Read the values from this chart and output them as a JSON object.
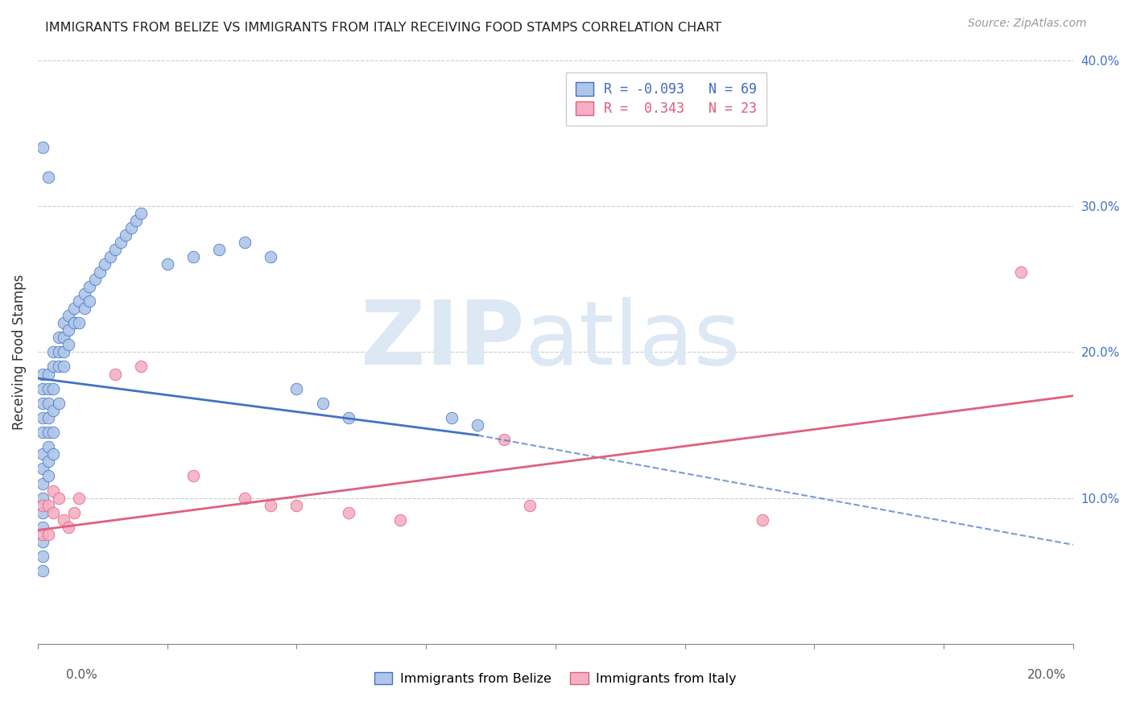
{
  "title": "IMMIGRANTS FROM BELIZE VS IMMIGRANTS FROM ITALY RECEIVING FOOD STAMPS CORRELATION CHART",
  "source": "Source: ZipAtlas.com",
  "ylabel": "Receiving Food Stamps",
  "xmin": 0.0,
  "xmax": 0.2,
  "ymin": 0.0,
  "ymax": 0.4,
  "legend_belize_R": "-0.093",
  "legend_belize_N": "69",
  "legend_italy_R": " 0.343",
  "legend_italy_N": "23",
  "color_belize": "#aec6e8",
  "color_italy": "#f4afc4",
  "color_belize_line": "#4472c4",
  "color_italy_line": "#e06080",
  "belize_line_solid_xmax": 0.085,
  "belize_x": [
    0.001,
    0.001,
    0.001,
    0.001,
    0.001,
    0.001,
    0.001,
    0.001,
    0.001,
    0.001,
    0.001,
    0.001,
    0.001,
    0.001,
    0.002,
    0.002,
    0.002,
    0.002,
    0.002,
    0.002,
    0.002,
    0.002,
    0.003,
    0.003,
    0.003,
    0.003,
    0.003,
    0.003,
    0.004,
    0.004,
    0.004,
    0.004,
    0.005,
    0.005,
    0.005,
    0.005,
    0.006,
    0.006,
    0.006,
    0.007,
    0.007,
    0.008,
    0.008,
    0.009,
    0.009,
    0.01,
    0.01,
    0.011,
    0.012,
    0.013,
    0.014,
    0.015,
    0.016,
    0.017,
    0.018,
    0.019,
    0.02,
    0.025,
    0.03,
    0.035,
    0.04,
    0.045,
    0.05,
    0.055,
    0.06,
    0.08,
    0.085,
    0.001,
    0.002
  ],
  "belize_y": [
    0.185,
    0.175,
    0.165,
    0.155,
    0.145,
    0.13,
    0.12,
    0.11,
    0.1,
    0.09,
    0.08,
    0.07,
    0.06,
    0.05,
    0.185,
    0.175,
    0.165,
    0.155,
    0.145,
    0.135,
    0.125,
    0.115,
    0.2,
    0.19,
    0.175,
    0.16,
    0.145,
    0.13,
    0.21,
    0.2,
    0.19,
    0.165,
    0.22,
    0.21,
    0.2,
    0.19,
    0.225,
    0.215,
    0.205,
    0.23,
    0.22,
    0.235,
    0.22,
    0.24,
    0.23,
    0.245,
    0.235,
    0.25,
    0.255,
    0.26,
    0.265,
    0.27,
    0.275,
    0.28,
    0.285,
    0.29,
    0.295,
    0.26,
    0.265,
    0.27,
    0.275,
    0.265,
    0.175,
    0.165,
    0.155,
    0.155,
    0.15,
    0.34,
    0.32
  ],
  "italy_x": [
    0.001,
    0.001,
    0.002,
    0.002,
    0.003,
    0.003,
    0.004,
    0.005,
    0.006,
    0.007,
    0.008,
    0.015,
    0.02,
    0.03,
    0.04,
    0.045,
    0.05,
    0.06,
    0.07,
    0.09,
    0.095,
    0.14,
    0.19
  ],
  "italy_y": [
    0.095,
    0.075,
    0.095,
    0.075,
    0.105,
    0.09,
    0.1,
    0.085,
    0.08,
    0.09,
    0.1,
    0.185,
    0.19,
    0.115,
    0.1,
    0.095,
    0.095,
    0.09,
    0.085,
    0.14,
    0.095,
    0.085,
    0.255
  ]
}
